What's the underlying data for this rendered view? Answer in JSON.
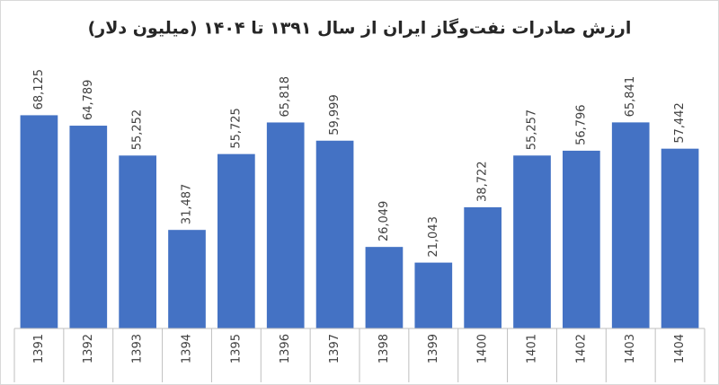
{
  "chart_data": {
    "type": "bar",
    "title": "ارزش صادرات نفت‌وگاز ایران از سال ۱۳۹۱ تا ۱۴۰۴ (میلیون دلار)",
    "categories": [
      "1391",
      "1392",
      "1393",
      "1394",
      "1395",
      "1396",
      "1397",
      "1398",
      "1399",
      "1400",
      "1401",
      "1402",
      "1403",
      "1404"
    ],
    "values": [
      68125,
      64789,
      55252,
      31487,
      55725,
      65818,
      59999,
      26049,
      21043,
      38722,
      55257,
      56796,
      65841,
      57442
    ],
    "value_labels": [
      "68,125",
      "64,789",
      "55,252",
      "31,487",
      "55,725",
      "65,818",
      "59,999",
      "26,049",
      "21,043",
      "38,722",
      "55,257",
      "56,796",
      "65,841",
      "57,442"
    ],
    "color": "#4472c4",
    "ylim": [
      0,
      80000
    ]
  }
}
